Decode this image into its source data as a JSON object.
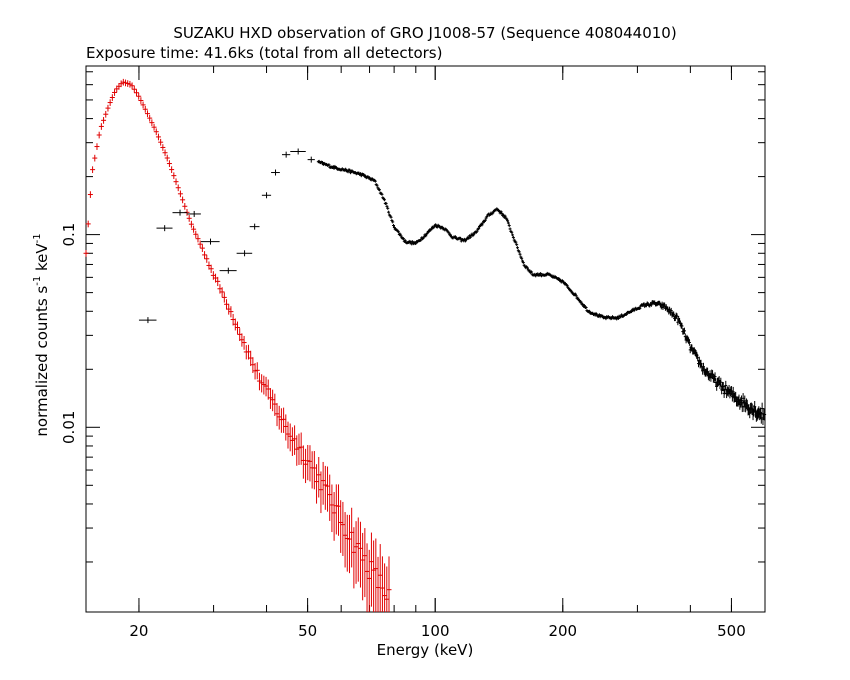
{
  "chart_data": {
    "type": "scatter",
    "title": "SUZAKU HXD observation of GRO J1008-57 (Sequence 408044010)",
    "subtitle": "Exposure time: 41.6ks (total from all detectors)",
    "xlabel": "Energy (keV)",
    "ylabel_main": "normalized counts s",
    "ylabel_mid": " keV",
    "ylabel_sup": "-1",
    "x_scale": "log",
    "y_scale": "log",
    "xlim": [
      15,
      600
    ],
    "ylim": [
      0.0011,
      0.75
    ],
    "x_ticks": [
      20,
      50,
      100,
      200,
      500
    ],
    "x_tick_labels": [
      "20",
      "50",
      "100",
      "200",
      "500"
    ],
    "y_ticks": [
      0.01,
      0.1
    ],
    "y_tick_labels": [
      "0.01",
      "0.1"
    ],
    "grid": false,
    "legend": "none",
    "series_colors": [
      "#e00000",
      "#000000"
    ],
    "red_anchors": [
      [
        15.0,
        0.08
      ],
      [
        15.5,
        0.21
      ],
      [
        16.2,
        0.35
      ],
      [
        17.0,
        0.47
      ],
      [
        17.6,
        0.56
      ],
      [
        18.3,
        0.62
      ],
      [
        19.2,
        0.6
      ],
      [
        20.0,
        0.52
      ],
      [
        21.0,
        0.42
      ],
      [
        22.0,
        0.34
      ],
      [
        23.5,
        0.24
      ],
      [
        25.0,
        0.165
      ],
      [
        26.5,
        0.115
      ],
      [
        28.0,
        0.088
      ],
      [
        30.0,
        0.062
      ],
      [
        32.0,
        0.046
      ],
      [
        34.0,
        0.034
      ],
      [
        36.0,
        0.025
      ],
      [
        38.0,
        0.019
      ],
      [
        41.0,
        0.014
      ],
      [
        45.0,
        0.0095
      ],
      [
        50.0,
        0.0068
      ],
      [
        55.0,
        0.0048
      ],
      [
        60.0,
        0.0033
      ],
      [
        66.0,
        0.0023
      ],
      [
        72.0,
        0.0017
      ],
      [
        78.0,
        0.0013
      ]
    ],
    "black_low": [
      {
        "x": 21.0,
        "y": 0.036,
        "xerr": [
          20.0,
          22.0
        ]
      },
      {
        "x": 23.0,
        "y": 0.108,
        "xerr": [
          22.0,
          24.0
        ]
      },
      {
        "x": 25.0,
        "y": 0.13,
        "xerr": [
          24.0,
          26.0
        ]
      },
      {
        "x": 27.0,
        "y": 0.128,
        "xerr": [
          26.0,
          28.0
        ]
      },
      {
        "x": 29.5,
        "y": 0.092,
        "xerr": [
          28.0,
          31.0
        ]
      },
      {
        "x": 32.5,
        "y": 0.065,
        "xerr": [
          31.0,
          34.0
        ]
      },
      {
        "x": 35.5,
        "y": 0.08,
        "xerr": [
          34.0,
          37.0
        ]
      },
      {
        "x": 37.5,
        "y": 0.11,
        "xerr": [
          36.5,
          38.5
        ]
      },
      {
        "x": 40.0,
        "y": 0.16,
        "xerr": [
          39.0,
          41.0
        ]
      },
      {
        "x": 42.0,
        "y": 0.21,
        "xerr": [
          41.0,
          43.0
        ]
      },
      {
        "x": 44.5,
        "y": 0.26,
        "xerr": [
          43.5,
          45.5
        ]
      },
      {
        "x": 47.5,
        "y": 0.27,
        "xerr": [
          45.5,
          49.5
        ]
      },
      {
        "x": 51.0,
        "y": 0.245,
        "xerr": [
          50.0,
          52.0
        ]
      }
    ],
    "black_anchors": [
      [
        53.0,
        0.238
      ],
      [
        57.0,
        0.225
      ],
      [
        62.0,
        0.215
      ],
      [
        67.0,
        0.205
      ],
      [
        72.0,
        0.19
      ],
      [
        76.0,
        0.15
      ],
      [
        80.0,
        0.11
      ],
      [
        85.0,
        0.092
      ],
      [
        90.0,
        0.09
      ],
      [
        95.0,
        0.1
      ],
      [
        100.0,
        0.112
      ],
      [
        105.0,
        0.108
      ],
      [
        110.0,
        0.097
      ],
      [
        117.0,
        0.093
      ],
      [
        125.0,
        0.103
      ],
      [
        133.0,
        0.125
      ],
      [
        140.0,
        0.136
      ],
      [
        147.0,
        0.122
      ],
      [
        155.0,
        0.09
      ],
      [
        162.0,
        0.07
      ],
      [
        170.0,
        0.062
      ],
      [
        185.0,
        0.062
      ],
      [
        200.0,
        0.057
      ],
      [
        215.0,
        0.048
      ],
      [
        230.0,
        0.04
      ],
      [
        250.0,
        0.037
      ],
      [
        270.0,
        0.037
      ],
      [
        290.0,
        0.04
      ],
      [
        310.0,
        0.043
      ],
      [
        330.0,
        0.044
      ],
      [
        350.0,
        0.042
      ],
      [
        375.0,
        0.036
      ],
      [
        400.0,
        0.026
      ],
      [
        430.0,
        0.02
      ],
      [
        470.0,
        0.0165
      ],
      [
        510.0,
        0.0143
      ],
      [
        560.0,
        0.0125
      ],
      [
        600.0,
        0.0115
      ]
    ]
  }
}
